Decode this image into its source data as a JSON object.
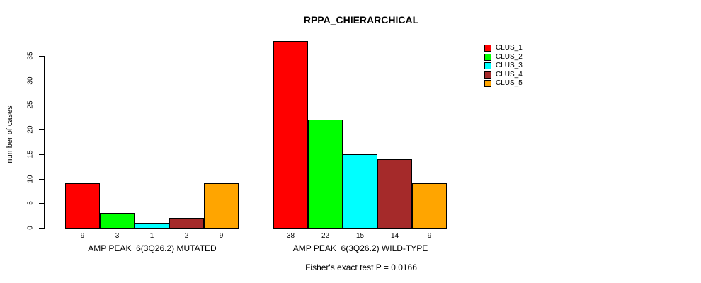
{
  "chart_data": {
    "type": "bar",
    "title": "RPPA_CHIERARCHICAL",
    "ylabel": "number of cases",
    "xlabel": "",
    "ylim": [
      0,
      38
    ],
    "yticks": [
      0,
      5,
      10,
      15,
      20,
      25,
      30,
      35
    ],
    "grid": false,
    "bar_outline_color": "#000000",
    "series_colors": [
      "#ff0000",
      "#00ff00",
      "#00ffff",
      "#a52a2a",
      "#ffa500"
    ],
    "legend": {
      "position": "top-right",
      "entries": [
        {
          "label": "CLUS_1",
          "color": "#ff0000"
        },
        {
          "label": "CLUS_2",
          "color": "#00ff00"
        },
        {
          "label": "CLUS_3",
          "color": "#00ffff"
        },
        {
          "label": "CLUS_4",
          "color": "#a52a2a"
        },
        {
          "label": "CLUS_5",
          "color": "#ffa500"
        }
      ]
    },
    "groups": [
      {
        "label": "AMP PEAK  6(3Q26.2) MUTATED",
        "values": [
          9,
          3,
          1,
          2,
          9
        ]
      },
      {
        "label": "AMP PEAK  6(3Q26.2) WILD-TYPE",
        "values": [
          38,
          22,
          15,
          14,
          9
        ]
      }
    ],
    "footnote": "Fisher's exact test P = 0.0166"
  }
}
